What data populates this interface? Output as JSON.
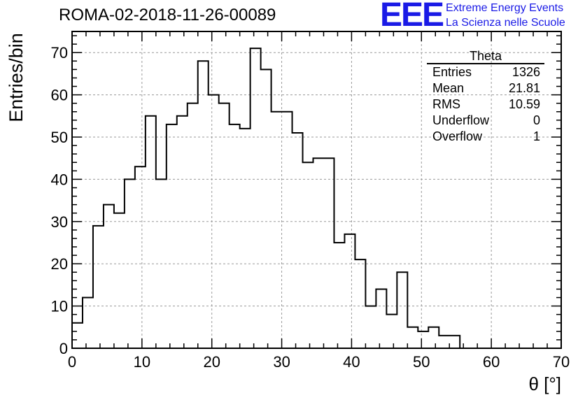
{
  "header": {
    "title": "ROMA-02-2018-11-26-00089",
    "logo_text": "EEE",
    "logo_line1": "Extreme Energy Events",
    "logo_line2": "La Scienza nelle Scuole"
  },
  "stats_box": {
    "name": "Theta",
    "rows": [
      {
        "label": "Entries",
        "value": "1326"
      },
      {
        "label": "Mean",
        "value": "21.81"
      },
      {
        "label": "RMS",
        "value": "10.59"
      },
      {
        "label": "Underflow",
        "value": "0"
      },
      {
        "label": "Overflow",
        "value": "1"
      }
    ]
  },
  "colors": {
    "histogram_line": "#000000",
    "grid": "#9a9a9a",
    "logo": "#1a1ae6"
  },
  "chart_data": {
    "type": "histogram",
    "xlabel": "θ [°]",
    "ylabel": "Entries/bin",
    "xlim": [
      0,
      70
    ],
    "ylim": [
      0,
      75
    ],
    "x_ticks": [
      0,
      10,
      20,
      30,
      40,
      50,
      60,
      70
    ],
    "y_ticks": [
      0,
      10,
      20,
      30,
      40,
      50,
      60,
      70
    ],
    "grid": true,
    "bin_width": 1.5,
    "bin_start": 0,
    "values": [
      6,
      12,
      29,
      34,
      32,
      40,
      43,
      55,
      40,
      53,
      55,
      58,
      68,
      60,
      58,
      53,
      52,
      71,
      66,
      56,
      56,
      51,
      44,
      45,
      45,
      25,
      27,
      21,
      10,
      14,
      8,
      18,
      5,
      4,
      5,
      3,
      3,
      0
    ]
  }
}
